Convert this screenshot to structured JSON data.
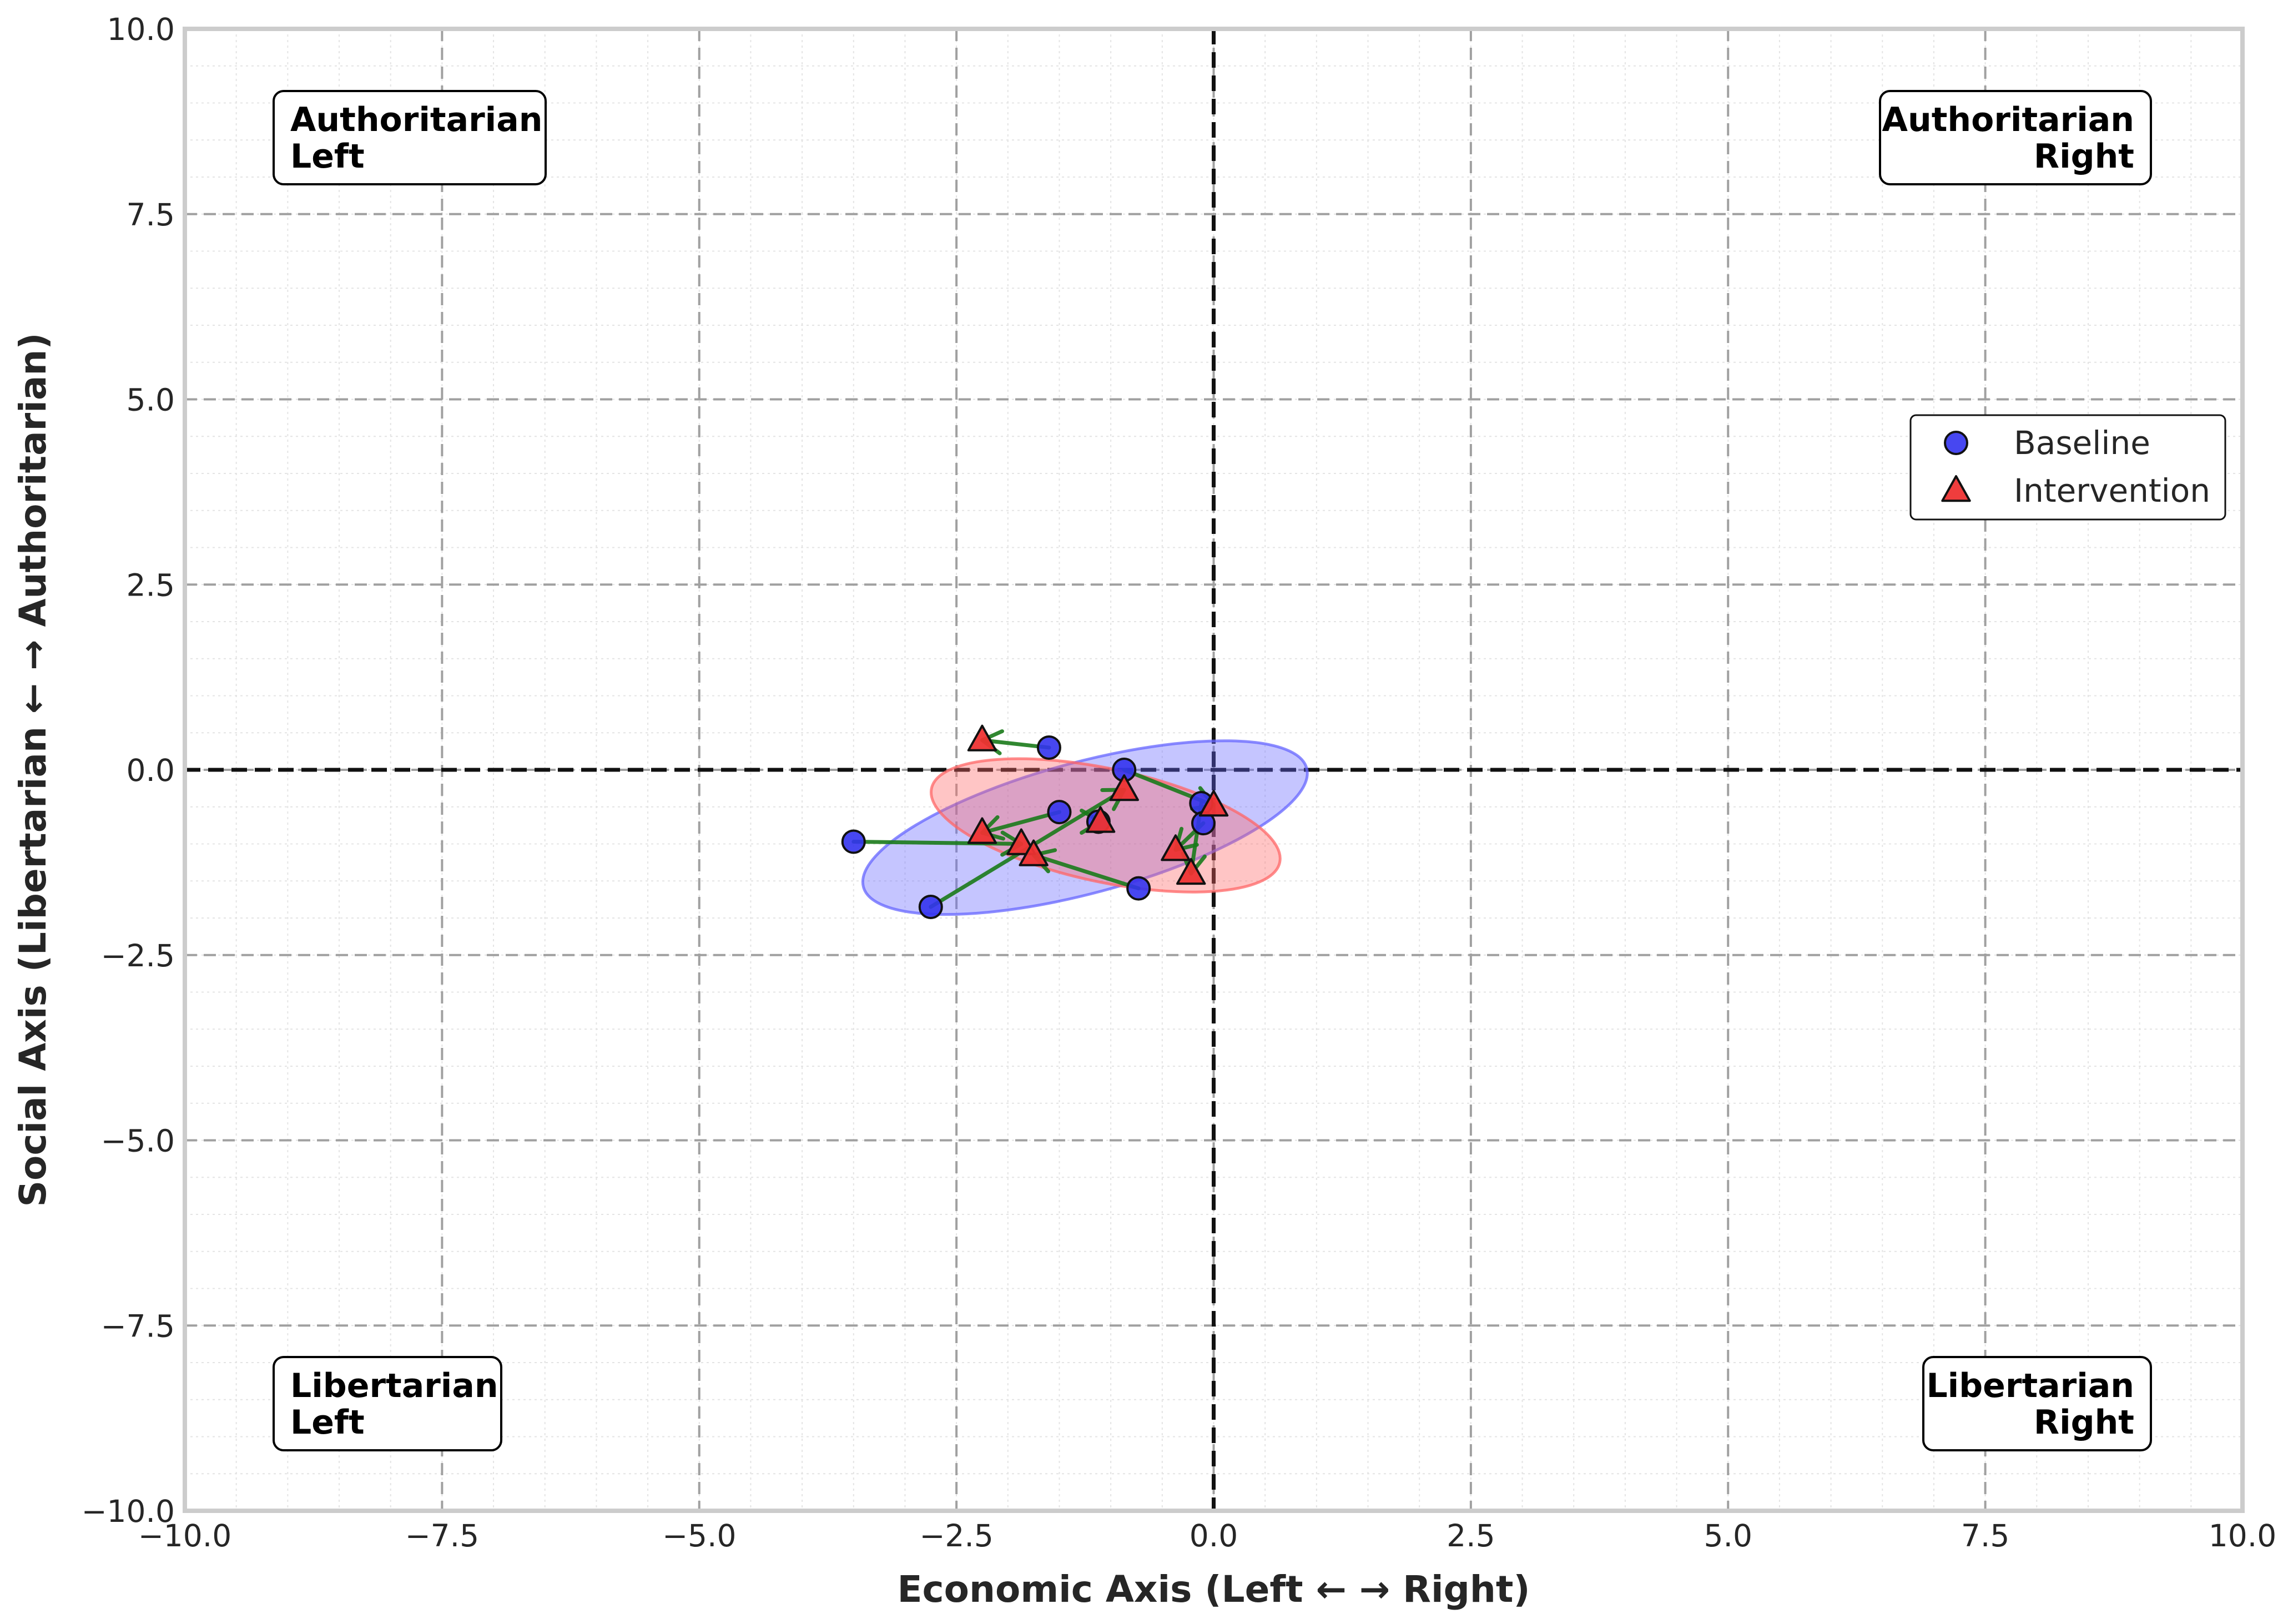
{
  "chart_data": {
    "type": "scatter",
    "title": "",
    "xlabel": "Economic Axis (Left ← → Right)",
    "ylabel": "Social Axis (Libertarian ← → Authoritarian)",
    "xlim": [
      -10,
      10
    ],
    "ylim": [
      -10,
      10
    ],
    "x_ticks": [
      "−10.0",
      "−7.5",
      "−5.0",
      "−2.5",
      "0.0",
      "2.5",
      "5.0",
      "7.5",
      "10.0"
    ],
    "y_ticks": [
      "−10.0",
      "−7.5",
      "−5.0",
      "−2.5",
      "0.0",
      "2.5",
      "5.0",
      "7.5",
      "10.0"
    ],
    "grid": true,
    "legend_position": "right",
    "quadrant_labels": {
      "top_left": [
        "Authoritarian",
        "Left"
      ],
      "top_right": [
        "Authoritarian",
        "Right"
      ],
      "bottom_left": [
        "Libertarian",
        "Left"
      ],
      "bottom_right": [
        "Libertarian",
        "Right"
      ]
    },
    "series": [
      {
        "name": "Baseline",
        "marker": "circle",
        "color": "#3333ee",
        "points": [
          [
            -3.5,
            -0.97
          ],
          [
            -2.75,
            -1.85
          ],
          [
            -1.6,
            0.3
          ],
          [
            -1.5,
            -0.57
          ],
          [
            -1.12,
            -0.7
          ],
          [
            -0.87,
            0.0
          ],
          [
            -0.73,
            -1.6
          ],
          [
            -0.12,
            -0.45
          ],
          [
            -0.1,
            -0.72
          ]
        ]
      },
      {
        "name": "Intervention",
        "marker": "triangle",
        "color": "#ee3333",
        "points": [
          [
            -2.25,
            0.4
          ],
          [
            -2.25,
            -0.85
          ],
          [
            -1.87,
            -1.0
          ],
          [
            -1.75,
            -1.15
          ],
          [
            -1.1,
            -0.7
          ],
          [
            -0.87,
            -0.27
          ],
          [
            -0.37,
            -1.08
          ],
          [
            -0.22,
            -1.4
          ],
          [
            0.0,
            -0.48
          ]
        ]
      }
    ],
    "shift_arrows": {
      "color": "#1a7a1a",
      "pairs": [
        [
          [
            -1.6,
            0.3
          ],
          [
            -2.25,
            0.4
          ]
        ],
        [
          [
            -3.5,
            -0.97
          ],
          [
            -1.87,
            -1.0
          ]
        ],
        [
          [
            -2.75,
            -1.85
          ],
          [
            -0.87,
            -0.27
          ]
        ],
        [
          [
            -1.5,
            -0.57
          ],
          [
            -2.25,
            -0.85
          ]
        ],
        [
          [
            -1.12,
            -0.7
          ],
          [
            -1.1,
            -0.7
          ]
        ],
        [
          [
            -0.87,
            0.0
          ],
          [
            0.0,
            -0.48
          ]
        ],
        [
          [
            -0.73,
            -1.6
          ],
          [
            -1.75,
            -1.15
          ]
        ],
        [
          [
            -0.12,
            -0.45
          ],
          [
            -0.22,
            -1.4
          ]
        ],
        [
          [
            -0.1,
            -0.72
          ],
          [
            -0.37,
            -1.08
          ]
        ]
      ]
    },
    "ellipses": [
      {
        "series": "Baseline",
        "center": [
          -1.25,
          -0.78
        ],
        "width": 4.46,
        "height": 1.77,
        "angle_deg": 15,
        "color": "#6666ff",
        "alpha": 0.4
      },
      {
        "series": "Intervention",
        "center": [
          -1.05,
          -0.75
        ],
        "width": 3.46,
        "height": 1.53,
        "angle_deg": -12,
        "color": "#ff6666",
        "alpha": 0.4
      }
    ]
  }
}
